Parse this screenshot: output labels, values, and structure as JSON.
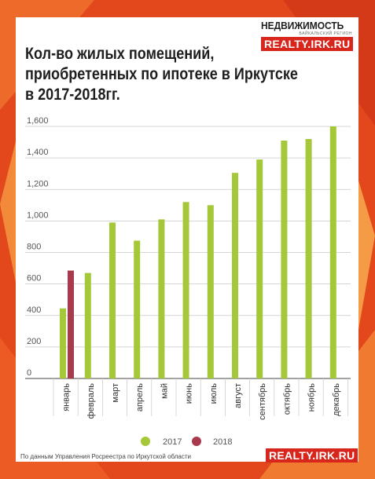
{
  "colors": {
    "background": "#e2481c",
    "card": "#ffffff",
    "series_2017": "#a4c838",
    "series_2018": "#a83a4e",
    "brand_red": "#d8261d"
  },
  "header": {
    "title_lines": [
      "Кол-во жилых помещений,",
      "приобретенных по ипотеке в Иркутске",
      "в 2017-2018гг."
    ],
    "logo_line1": "НЕДВИЖИМОСТЬ",
    "logo_line2": "БАЙКАЛЬСКИЙ РЕГИОН",
    "logo_badge": "REALTY.IRK.RU"
  },
  "footer": {
    "source": "По данным Управления Росреестра по Иркутской области",
    "badge": "REALTY.IRK.RU"
  },
  "chart_data": {
    "type": "bar",
    "title": "Кол-во жилых помещений, приобретенных по ипотеке в Иркутске в 2017-2018гг.",
    "categories": [
      "январь",
      "февраль",
      "март",
      "апрель",
      "май",
      "июнь",
      "июль",
      "август",
      "сентябрь",
      "октябрь",
      "ноябрь",
      "декабрь"
    ],
    "series": [
      {
        "name": "2017",
        "color": "#a4c838",
        "values": [
          445,
          670,
          990,
          875,
          1010,
          1120,
          1100,
          1305,
          1390,
          1510,
          1520,
          1600
        ]
      },
      {
        "name": "2018",
        "color": "#a83a4e",
        "values": [
          685,
          null,
          null,
          null,
          null,
          null,
          null,
          null,
          null,
          null,
          null,
          null
        ]
      }
    ],
    "ylim": [
      0,
      1600
    ],
    "yticks": [
      0,
      200,
      400,
      600,
      800,
      1000,
      1200,
      1400,
      1600
    ],
    "ytick_labels": [
      "0",
      "200",
      "400",
      "600",
      "800",
      "1,000",
      "1,200",
      "1,400",
      "1,600"
    ],
    "grid": true,
    "legend": "bottom-center"
  }
}
